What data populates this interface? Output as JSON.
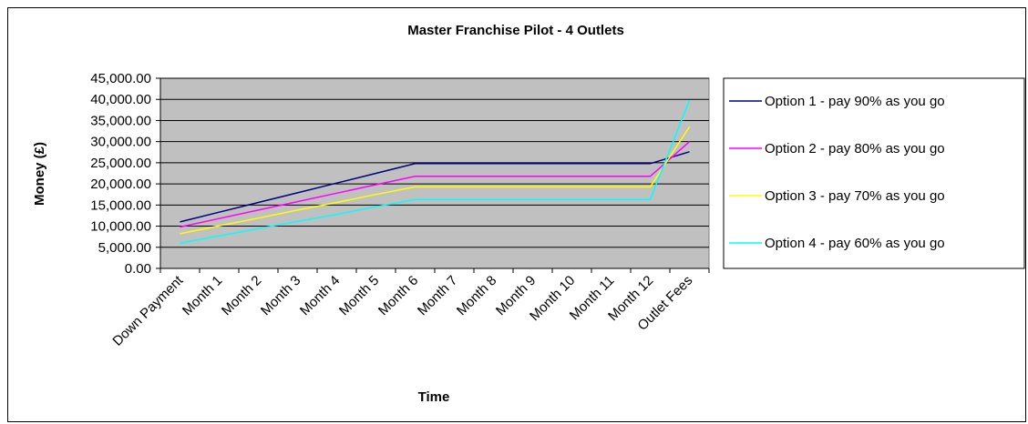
{
  "chart_data": {
    "type": "line",
    "title": "Master Franchise Pilot  - 4 Outlets",
    "xlabel": "Time",
    "ylabel": "Money (£)",
    "ylim": [
      0,
      45000
    ],
    "yticks": [
      "0.00",
      "5,000.00",
      "10,000.00",
      "15,000.00",
      "20,000.00",
      "25,000.00",
      "30,000.00",
      "35,000.00",
      "40,000.00",
      "45,000.00"
    ],
    "grid": true,
    "legend": "right",
    "categories": [
      "Down Payment",
      "Month 1",
      "Month 2",
      "Month 3",
      "Month 4",
      "Month 5",
      "Month 6",
      "Month 7",
      "Month 8",
      "Month 9",
      "Month 10",
      "Month 11",
      "Month 12",
      "Outlet Fees"
    ],
    "series": [
      {
        "name": "Option 1 - pay 90% as you go",
        "color": "#000080",
        "values": [
          11000,
          13300,
          15600,
          17900,
          20200,
          22500,
          24800,
          24800,
          24800,
          24800,
          24800,
          24800,
          24800,
          27600
        ]
      },
      {
        "name": "Option 2 - pay 80% as you go",
        "color": "#ff00ff",
        "values": [
          9800,
          11800,
          13800,
          15800,
          17800,
          19800,
          21800,
          21800,
          21800,
          21800,
          21800,
          21800,
          21800,
          30000
        ]
      },
      {
        "name": "Option 3 - pay 70% as you go",
        "color": "#ffff00",
        "values": [
          8200,
          10100,
          11900,
          13800,
          15600,
          17500,
          19300,
          19300,
          19300,
          19300,
          19300,
          19300,
          19300,
          33500
        ]
      },
      {
        "name": "Option 4 - pay 60% as you go",
        "color": "#00ffff",
        "values": [
          6000,
          7700,
          9400,
          11100,
          12800,
          14600,
          16300,
          16300,
          16300,
          16300,
          16300,
          16300,
          16300,
          39800
        ]
      }
    ]
  }
}
